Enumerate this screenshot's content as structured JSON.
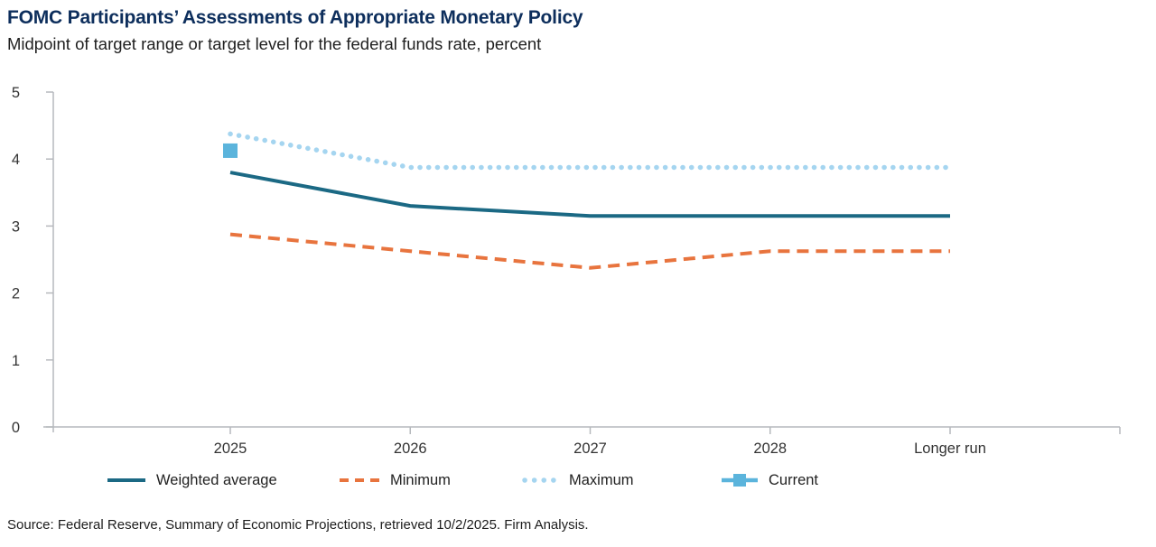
{
  "header": {
    "title": "FOMC Participants’ Assessments of Appropriate Monetary Policy",
    "subtitle": "Midpoint of target range or target level for the federal funds rate, percent"
  },
  "source": "Source: Federal Reserve, Summary of Economic Projections, retrieved 10/2/2025. Firm Analysis.",
  "colors": {
    "title": "#0d2e5c",
    "tick_label": "#333333",
    "axis": "#b6b9bd",
    "legend_text": "#222222"
  },
  "chart_data": {
    "type": "line",
    "title": "FOMC Participants’ Assessments of Appropriate Monetary Policy",
    "subtitle": "Midpoint of target range or target level for the federal funds rate, percent",
    "categories": [
      "2025",
      "2026",
      "2027",
      "2028",
      "Longer run"
    ],
    "series": [
      {
        "name": "Maximum",
        "style": "dotted",
        "color": "#a5d5f0",
        "values": [
          4.375,
          3.875,
          3.875,
          3.875,
          3.875
        ]
      },
      {
        "name": "Minimum",
        "style": "dashed",
        "color": "#e8743e",
        "values": [
          2.875,
          2.625,
          2.375,
          2.625,
          2.625
        ]
      },
      {
        "name": "Weighted average",
        "style": "solid",
        "color": "#1b6984",
        "values": [
          3.8,
          3.3,
          3.15,
          3.15,
          3.15
        ]
      },
      {
        "name": "Current",
        "style": "square-marker",
        "color": "#5bb4dc",
        "values": [
          4.125,
          null,
          null,
          null,
          null
        ]
      }
    ],
    "legend_order": [
      "Weighted average",
      "Minimum",
      "Maximum",
      "Current"
    ],
    "ylim": [
      0,
      5
    ],
    "yticks": [
      0,
      1,
      2,
      3,
      4,
      5
    ],
    "grid": false,
    "legend_position": "bottom"
  }
}
